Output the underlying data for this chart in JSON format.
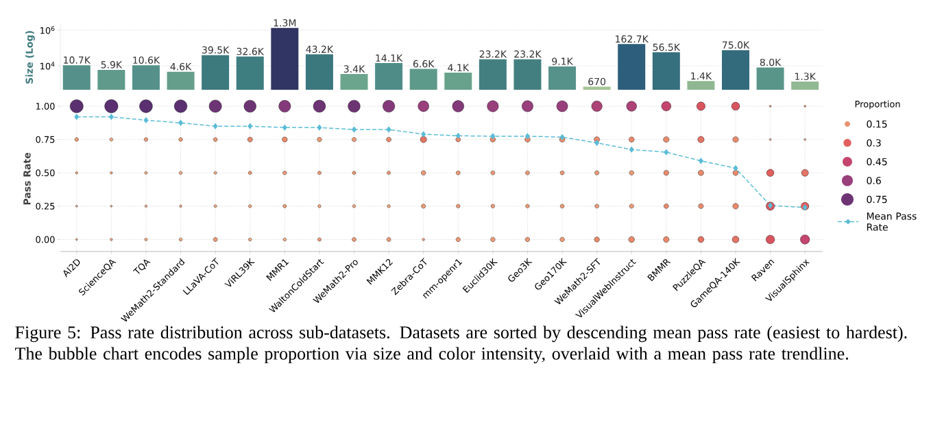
{
  "chart_data": [
    {
      "type": "bar",
      "ylabel": "Size (Log)",
      "categories": [
        null,
        null,
        null,
        null,
        null,
        null,
        null,
        null,
        null,
        null,
        null,
        null,
        null,
        null,
        null,
        null,
        null,
        null,
        null,
        null,
        null,
        null
      ],
      "values": [
        10700,
        5900,
        10600,
        4600,
        39500,
        32600,
        1300000,
        43200,
        3400,
        14100,
        6600,
        4100,
        23200,
        23200,
        9100,
        670,
        162700,
        56500,
        1400,
        75000,
        8000,
        1300
      ],
      "value_labels": [
        "10.7K",
        "5.9K",
        "10.6K",
        "4.6K",
        "39.5K",
        "32.6K",
        "1.3M",
        "43.2K",
        "3.4K",
        "14.1K",
        "6.6K",
        "4.1K",
        "23.2K",
        "23.2K",
        "9.1K",
        "670",
        "162.7K",
        "56.5K",
        "1.4K",
        "75.0K",
        "8.0K",
        "1.3K"
      ],
      "colors": [
        "#55918a",
        "#5f9a8a",
        "#55918a",
        "#659f8b",
        "#3c7a7e",
        "#3e7d80",
        "#313563",
        "#3a787e",
        "#6ca58d",
        "#4f8c88",
        "#5e9a8a",
        "#68a28c",
        "#437f80",
        "#437f80",
        "#57928a",
        "#a3c494",
        "#2d5f7c",
        "#366f7d",
        "#8fb892",
        "#336b7d",
        "#5a958a",
        "#91b993"
      ],
      "log": true,
      "ylim": [
        450,
        2000000
      ],
      "yticks": [
        {
          "value": 10000,
          "label": "10$^{4}$"
        },
        {
          "value": 1000000,
          "label": "10$^{6}$"
        }
      ],
      "grid": "y",
      "tick_labels": "y"
    },
    {
      "type": "bubble",
      "ylabel": "Pass Rate",
      "legend": "right",
      "legend_title": "Proportion",
      "categories": [
        "AI2D",
        "ScienceQA",
        "TQA",
        "WeMath2-Standard",
        "LLaVA-CoT",
        "ViRL39K",
        "MMR1",
        "WaltonColdStart",
        "WeMath2-Pro",
        "MMK12",
        "Zebra-CoT",
        "mm-openr1",
        "Euclid30K",
        "Geo3K",
        "Geo170K",
        "WeMath2-SFT",
        "VisualWebInstruct",
        "BMMR",
        "PuzzleQA",
        "GameQA-140K",
        "Raven",
        "VisualSphinx"
      ],
      "ylim": [
        -0.09,
        1
      ],
      "yticks": [
        {
          "value": 0,
          "label": "0.00"
        },
        {
          "value": 0.25,
          "label": "0.25"
        },
        {
          "value": 0.5,
          "label": "0.50"
        },
        {
          "value": 0.75,
          "label": "0.75"
        },
        {
          "value": 1,
          "label": "1.00"
        }
      ],
      "size_legend": [
        0.15,
        0.3,
        0.45,
        0.6,
        0.75
      ],
      "grid": true,
      "series": [
        {
          "values": [
            1,
            1,
            1,
            1,
            1,
            1,
            1,
            1,
            1,
            1,
            1,
            1,
            1,
            1,
            1,
            1,
            1,
            1,
            1,
            1,
            1,
            1
          ],
          "sizes": [
            0.85,
            0.87,
            0.82,
            0.8,
            0.76,
            0.72,
            0.69,
            0.73,
            0.72,
            0.7,
            0.58,
            0.65,
            0.62,
            0.61,
            0.6,
            0.55,
            0.5,
            0.44,
            0.35,
            0.32,
            0.02,
            0.02
          ],
          "colors": [
            "#5a3070",
            "#5a3070",
            "#5a3070",
            "#5a3070",
            "#6d3474",
            "#6d3474",
            "#843a7a",
            "#6d3474",
            "#6d3474",
            "#843a7a",
            "#983f7c",
            "#843a7a",
            "#983f7c",
            "#983f7c",
            "#983f7c",
            "#ac4275",
            "#ac4275",
            "#c4456e",
            "#d8545f",
            "#d8545f",
            "#f0a882",
            "#f0a882"
          ]
        },
        {
          "values": [
            0.75,
            0.75,
            0.75,
            0.75,
            0.75,
            0.75,
            0.75,
            0.75,
            0.75,
            0.75,
            0.75,
            0.75,
            0.75,
            0.75,
            0.75,
            0.75,
            0.75,
            0.75,
            0.75,
            0.75,
            0.75,
            0.75
          ],
          "sizes": [
            0.07,
            0.05,
            0.07,
            0.07,
            0.08,
            0.12,
            0.13,
            0.1,
            0.09,
            0.11,
            0.2,
            0.11,
            0.13,
            0.14,
            0.14,
            0.15,
            0.14,
            0.16,
            0.2,
            0.16,
            0.02,
            0.02
          ],
          "colors": [
            "#ec9a76",
            "#f0a882",
            "#ec9a76",
            "#ec9a76",
            "#ec9a76",
            "#e98a6c",
            "#e98a6c",
            "#ec9a76",
            "#ec9a76",
            "#e98a6c",
            "#e47464",
            "#e98a6c",
            "#e98a6c",
            "#e98a6c",
            "#e98a6c",
            "#e98a6c",
            "#e98a6c",
            "#e98a6c",
            "#e47464",
            "#e98a6c",
            "#f0a882",
            "#f0a882"
          ]
        },
        {
          "values": [
            0.5,
            0.5,
            0.5,
            0.5,
            0.5,
            0.5,
            0.5,
            0.5,
            0.5,
            0.5,
            0.5,
            0.5,
            0.5,
            0.5,
            0.5,
            0.5,
            0.5,
            0.5,
            0.5,
            0.5,
            0.5,
            0.5
          ],
          "sizes": [
            0.03,
            0.03,
            0.04,
            0.05,
            0.04,
            0.06,
            0.07,
            0.06,
            0.06,
            0.06,
            0.1,
            0.08,
            0.08,
            0.08,
            0.08,
            0.09,
            0.1,
            0.13,
            0.15,
            0.14,
            0.26,
            0.24
          ],
          "colors": [
            "#f0a882",
            "#f0a882",
            "#f0a882",
            "#f0a882",
            "#f0a882",
            "#ec9a76",
            "#ec9a76",
            "#ec9a76",
            "#ec9a76",
            "#ec9a76",
            "#ec9a76",
            "#ec9a76",
            "#ec9a76",
            "#ec9a76",
            "#ec9a76",
            "#ec9a76",
            "#ec9a76",
            "#e98a6c",
            "#e98a6c",
            "#e98a6c",
            "#e0605e",
            "#e47464"
          ]
        },
        {
          "values": [
            0.25,
            0.25,
            0.25,
            0.25,
            0.25,
            0.25,
            0.25,
            0.25,
            0.25,
            0.25,
            0.25,
            0.25,
            0.25,
            0.25,
            0.25,
            0.25,
            0.25,
            0.25,
            0.25,
            0.25,
            0.25,
            0.25
          ],
          "sizes": [
            0.02,
            0.02,
            0.03,
            0.03,
            0.04,
            0.05,
            0.06,
            0.05,
            0.05,
            0.05,
            0.09,
            0.07,
            0.07,
            0.07,
            0.08,
            0.08,
            0.09,
            0.11,
            0.12,
            0.16,
            0.34,
            0.3
          ],
          "colors": [
            "#f0a882",
            "#f0a882",
            "#f0a882",
            "#f0a882",
            "#f0a882",
            "#f0a882",
            "#ec9a76",
            "#f0a882",
            "#f0a882",
            "#f0a882",
            "#ec9a76",
            "#ec9a76",
            "#ec9a76",
            "#ec9a76",
            "#ec9a76",
            "#ec9a76",
            "#ec9a76",
            "#e98a6c",
            "#e98a6c",
            "#e98a6c",
            "#d8545f",
            "#e0605e"
          ]
        },
        {
          "values": [
            0,
            0,
            0,
            0,
            0,
            0,
            0,
            0,
            0,
            0,
            0,
            0,
            0,
            0,
            0,
            0,
            0,
            0,
            0,
            0,
            0,
            0
          ],
          "sizes": [
            0.02,
            0.03,
            0.04,
            0.05,
            0.08,
            0.05,
            0.05,
            0.06,
            0.08,
            0.08,
            0.03,
            0.09,
            0.1,
            0.1,
            0.1,
            0.13,
            0.17,
            0.16,
            0.18,
            0.22,
            0.36,
            0.42
          ],
          "colors": [
            "#f0a882",
            "#f0a882",
            "#f0a882",
            "#f0a882",
            "#ec9a76",
            "#f0a882",
            "#f0a882",
            "#ec9a76",
            "#ec9a76",
            "#ec9a76",
            "#f0a882",
            "#ec9a76",
            "#ec9a76",
            "#ec9a76",
            "#ec9a76",
            "#e98a6c",
            "#e98a6c",
            "#e98a6c",
            "#e47464",
            "#e47464",
            "#d8545f",
            "#c4456e"
          ]
        },
        {
          "type": "line",
          "name": "Mean Pass Rate",
          "color": "#5bbcd6",
          "line_style": "dashed",
          "marker": "diamond",
          "values": [
            0.92,
            0.92,
            0.895,
            0.875,
            0.85,
            0.85,
            0.84,
            0.84,
            0.825,
            0.825,
            0.79,
            0.778,
            0.775,
            0.775,
            0.768,
            0.725,
            0.675,
            0.655,
            0.59,
            0.535,
            0.255,
            0.24
          ]
        }
      ],
      "annotations": [
        "Figure 5: Pass rate distribution across sub-datasets. Datasets are sorted by descending mean pass rate (easiest to hardest). The bubble chart encodes sample proportion via size and color intensity, overlaid with a mean pass rate trendline."
      ]
    }
  ]
}
